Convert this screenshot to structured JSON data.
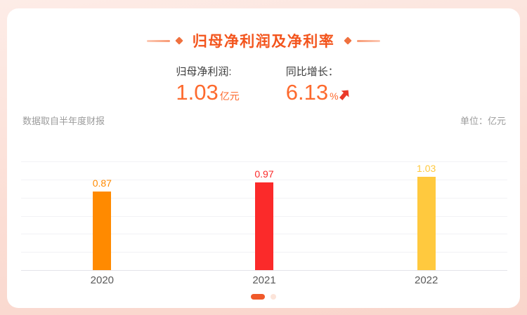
{
  "header": {
    "title": "归母净利润及净利率"
  },
  "stats": [
    {
      "label": "归母净利润:",
      "value": "1.03",
      "unit": "亿元"
    },
    {
      "label": "同比增长：",
      "value": "6.13",
      "unit": "%",
      "trend": "up"
    }
  ],
  "meta": {
    "source_note": "数据取自半年度财报",
    "unit_note": "单位：亿元"
  },
  "chart_data": {
    "type": "bar",
    "title": "归母净利润及净利率",
    "categories": [
      "2020",
      "2021",
      "2022"
    ],
    "values": [
      0.87,
      0.97,
      1.03
    ],
    "bar_colors": [
      "#FF8A00",
      "#FB2A2A",
      "#FFC93E"
    ],
    "value_label_colors": [
      "#FF8A00",
      "#FB2A2A",
      "#FFC93E"
    ],
    "xlabel": "",
    "ylabel": "亿元",
    "ylim": [
      0,
      1.2
    ],
    "gridline_count": 7,
    "grid": true,
    "value_labels": true,
    "legend": false
  },
  "pagination": {
    "active_index": 0,
    "count": 2
  },
  "colors": {
    "accent_orange": "#f3541c",
    "stat_number": "#fd6a2e",
    "trend_arrow_red": "#ea392a",
    "background_pink": "#fbddd4",
    "card_white": "#ffffff",
    "grid_gray": "#f2f2f5",
    "text_gray": "#9b9b9b"
  }
}
